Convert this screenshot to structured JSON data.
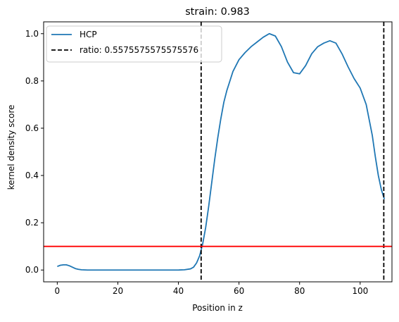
{
  "chart_data": {
    "type": "line",
    "title": "strain: 0.983",
    "xlabel": "Position in z",
    "ylabel": "kernel density score",
    "xlim": [
      -4.5,
      110.5
    ],
    "ylim": [
      -0.05,
      1.05
    ],
    "xticks": [
      0,
      20,
      40,
      60,
      80,
      100
    ],
    "yticks": [
      0.0,
      0.2,
      0.4,
      0.6,
      0.8,
      1.0
    ],
    "xtick_labels": [
      "0",
      "20",
      "40",
      "60",
      "80",
      "100"
    ],
    "ytick_labels": [
      "0.0",
      "0.2",
      "0.4",
      "0.6",
      "0.8",
      "1.0"
    ],
    "grid": false,
    "legend_position": "upper-left",
    "series": [
      {
        "name": "HCP",
        "color": "#1f77b4",
        "x": [
          0,
          1,
          2,
          3,
          4,
          5,
          6,
          7,
          8,
          10,
          15,
          20,
          25,
          30,
          35,
          40,
          42,
          44,
          45,
          46,
          47,
          48,
          49,
          50,
          51,
          52,
          53,
          54,
          55,
          56,
          57,
          58,
          60,
          62,
          64,
          66,
          68,
          70,
          72,
          74,
          76,
          78,
          80,
          82,
          84,
          86,
          88,
          90,
          92,
          94,
          96,
          98,
          100,
          102,
          104,
          105,
          106,
          107,
          108
        ],
        "y": [
          0.015,
          0.02,
          0.022,
          0.022,
          0.018,
          0.012,
          0.006,
          0.003,
          0.001,
          0.0,
          0.0,
          0.0,
          0.0,
          0.0,
          0.0,
          0.0,
          0.001,
          0.005,
          0.012,
          0.03,
          0.06,
          0.11,
          0.18,
          0.27,
          0.37,
          0.47,
          0.56,
          0.64,
          0.71,
          0.76,
          0.8,
          0.84,
          0.89,
          0.92,
          0.945,
          0.965,
          0.985,
          1.0,
          0.99,
          0.945,
          0.88,
          0.835,
          0.83,
          0.865,
          0.915,
          0.945,
          0.96,
          0.97,
          0.96,
          0.915,
          0.86,
          0.81,
          0.77,
          0.7,
          0.57,
          0.48,
          0.4,
          0.34,
          0.3
        ]
      }
    ],
    "vlines": [
      {
        "x": 47.5,
        "color": "#000000",
        "style": "dashed",
        "label": "ratio: 0.5575575575575576"
      },
      {
        "x": 107.8,
        "color": "#000000",
        "style": "dashed",
        "label": ""
      }
    ],
    "hlines": [
      {
        "y": 0.1,
        "color": "#ff0000",
        "style": "solid"
      }
    ]
  }
}
